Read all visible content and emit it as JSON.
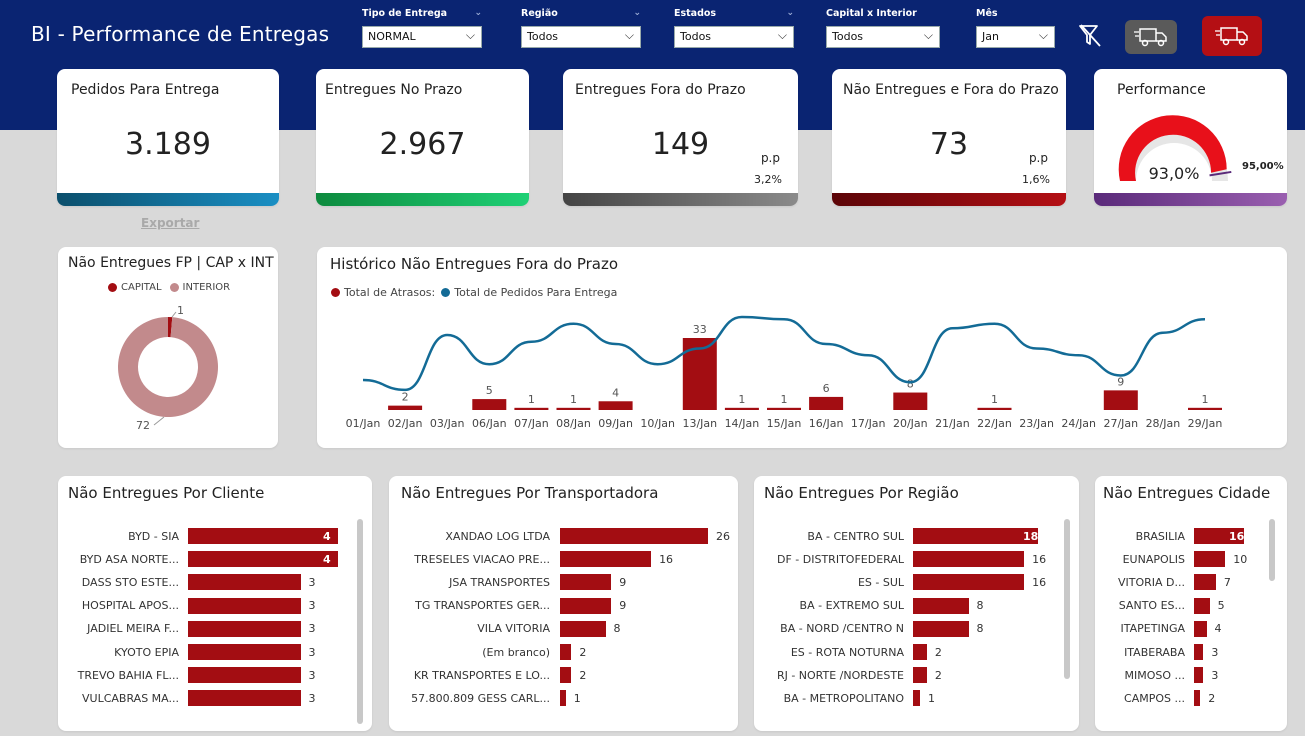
{
  "header": {
    "title": "BI - Performance de Entregas",
    "filters": [
      {
        "label": "Tipo de Entrega",
        "value": "NORMAL"
      },
      {
        "label": "Região",
        "value": "Todos"
      },
      {
        "label": "Estados",
        "value": "Todos"
      },
      {
        "label": "Capital x Interior",
        "value": "Todos"
      },
      {
        "label": "Mês",
        "value": "Jan"
      }
    ],
    "icons": {
      "clear_filters": "filter-clear-icon",
      "truck_normal": "truck-icon",
      "truck_fast": "fast-truck-icon"
    }
  },
  "kpis": [
    {
      "title": "Pedidos Para Entrega",
      "value": "3.189",
      "color_start": "#0b4f6c",
      "color_end": "#1a8fc4"
    },
    {
      "title": "Entregues No Prazo",
      "value": "2.967",
      "color_start": "#0d8a3e",
      "color_end": "#1fd176"
    },
    {
      "title": "Entregues Fora do Prazo",
      "value": "149",
      "pp_label": "p.p",
      "pp_value": "3,2%",
      "color_start": "#444444",
      "color_end": "#8a8a8a"
    },
    {
      "title": "Não Entregues e Fora do Prazo",
      "value": "73",
      "pp_label": "p.p",
      "pp_value": "1,6%",
      "color_start": "#5c0508",
      "color_end": "#b40f14"
    }
  ],
  "performance": {
    "title": "Performance",
    "value": "93,0%",
    "target": "95,00%",
    "fraction": 0.93,
    "target_fraction": 0.95,
    "color": "#e8101a",
    "bar_start": "#5a2a7a",
    "bar_end": "#9a5fb0"
  },
  "export_label": "Exportar",
  "donut": {
    "title": "Não Entregues FP | CAP x INT",
    "legend": [
      {
        "name": "CAPITAL",
        "color": "#a30d12"
      },
      {
        "name": "INTERIOR",
        "color": "#c28a8c"
      }
    ],
    "capital": 1,
    "interior": 72,
    "capital_label": "1",
    "interior_label": "72"
  },
  "history": {
    "title": "Histórico Não Entregues Fora do Prazo",
    "legend": [
      {
        "name": "Total de Atrasos:",
        "color": "#a30d12"
      },
      {
        "name": "Total de Pedidos Para Entrega",
        "color": "#136b96"
      }
    ]
  },
  "chart_data": {
    "type": "bar",
    "title": "Histórico Não Entregues Fora do Prazo",
    "categories": [
      "01/Jan",
      "02/Jan",
      "03/Jan",
      "06/Jan",
      "07/Jan",
      "08/Jan",
      "09/Jan",
      "10/Jan",
      "13/Jan",
      "14/Jan",
      "15/Jan",
      "16/Jan",
      "17/Jan",
      "20/Jan",
      "21/Jan",
      "22/Jan",
      "23/Jan",
      "24/Jan",
      "27/Jan",
      "28/Jan",
      "29/Jan"
    ],
    "series": [
      {
        "name": "Total de Atrasos:",
        "type": "bar",
        "values": [
          0,
          2,
          0,
          5,
          1,
          1,
          4,
          0,
          33,
          1,
          1,
          6,
          0,
          8,
          0,
          1,
          0,
          0,
          9,
          0,
          1
        ],
        "labels": [
          "",
          "2",
          "",
          "5",
          "1",
          "1",
          "4",
          "",
          "33",
          "1",
          "1",
          "6",
          "",
          "8",
          "",
          "1",
          "",
          "",
          "9",
          "",
          "1"
        ]
      },
      {
        "name": "Total de Pedidos Para Entrega",
        "type": "line",
        "values": [
          60,
          38,
          160,
          95,
          145,
          185,
          140,
          95,
          130,
          200,
          195,
          140,
          115,
          55,
          175,
          185,
          130,
          115,
          70,
          165,
          195
        ]
      }
    ]
  },
  "panels": {
    "cliente": {
      "title": "Não Entregues Por Cliente",
      "max": 4,
      "rows": [
        {
          "label": "BYD - SIA",
          "value": 4
        },
        {
          "label": "BYD ASA NORTE...",
          "value": 4
        },
        {
          "label": "DASS STO ESTE...",
          "value": 3
        },
        {
          "label": "HOSPITAL APOS...",
          "value": 3
        },
        {
          "label": "JADIEL MEIRA F...",
          "value": 3
        },
        {
          "label": "KYOTO EPIA",
          "value": 3
        },
        {
          "label": "TREVO BAHIA FL...",
          "value": 3
        },
        {
          "label": "VULCABRAS MA...",
          "value": 3
        }
      ]
    },
    "transportadora": {
      "title": "Não Entregues Por Transportadora",
      "max": 26,
      "rows": [
        {
          "label": "XANDAO LOG LTDA",
          "value": 26
        },
        {
          "label": "TRESELES VIACAO PRE...",
          "value": 16
        },
        {
          "label": "JSA TRANSPORTES",
          "value": 9
        },
        {
          "label": "TG TRANSPORTES GER...",
          "value": 9
        },
        {
          "label": "VILA VITORIA",
          "value": 8
        },
        {
          "label": "(Em branco)",
          "value": 2
        },
        {
          "label": "KR TRANSPORTES E LO...",
          "value": 2
        },
        {
          "label": "57.800.809 GESS CARL...",
          "value": 1
        }
      ]
    },
    "regiao": {
      "title": "Não Entregues Por Região",
      "max": 18,
      "rows": [
        {
          "label": "BA - CENTRO SUL",
          "value": 18
        },
        {
          "label": "DF - DISTRITOFEDERAL",
          "value": 16
        },
        {
          "label": "ES - SUL",
          "value": 16
        },
        {
          "label": "BA - EXTREMO SUL",
          "value": 8
        },
        {
          "label": "BA - NORD /CENTRO N",
          "value": 8
        },
        {
          "label": "ES - ROTA NOTURNA",
          "value": 2
        },
        {
          "label": "RJ - NORTE /NORDESTE",
          "value": 2
        },
        {
          "label": "BA - METROPOLITANO",
          "value": 1
        }
      ]
    },
    "cidade": {
      "title": "Não Entregues Cidade",
      "max": 16,
      "rows": [
        {
          "label": "BRASILIA",
          "value": 16
        },
        {
          "label": "EUNAPOLIS",
          "value": 10
        },
        {
          "label": "VITORIA D...",
          "value": 7
        },
        {
          "label": "SANTO ES...",
          "value": 5
        },
        {
          "label": "ITAPETINGA",
          "value": 4
        },
        {
          "label": "ITABERABA",
          "value": 3
        },
        {
          "label": "MIMOSO ...",
          "value": 3
        },
        {
          "label": "CAMPOS ...",
          "value": 2
        }
      ]
    }
  }
}
